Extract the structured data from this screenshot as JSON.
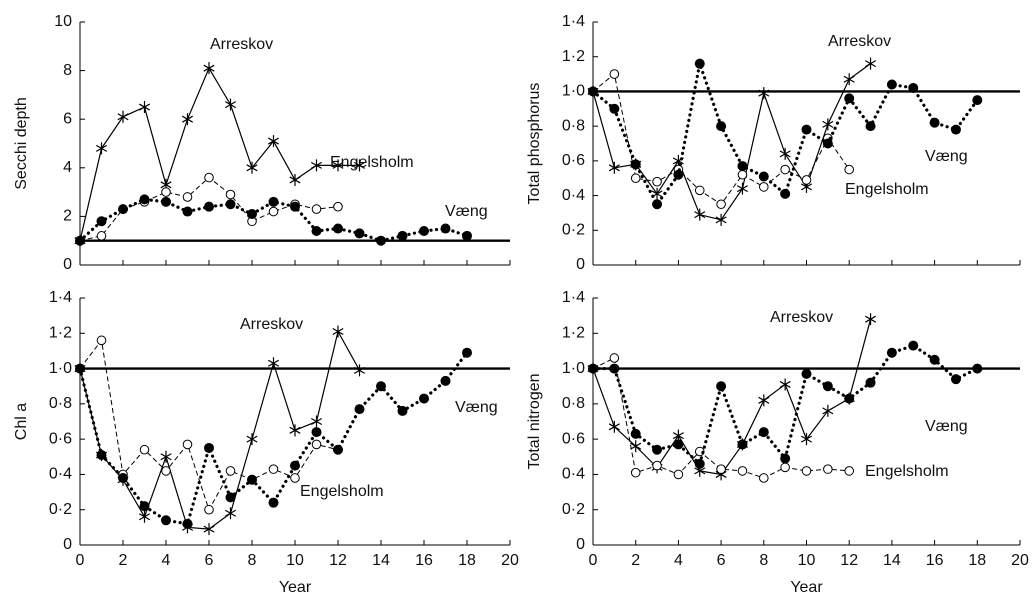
{
  "chart_data": [
    {
      "type": "line",
      "ylabel": "Secchi depth",
      "show_xtick_labels": false,
      "x": [
        0,
        1,
        2,
        3,
        4,
        5,
        6,
        7,
        8,
        9,
        10,
        11,
        12,
        13,
        14,
        15,
        16,
        17,
        18
      ],
      "xlim": [
        0,
        20
      ],
      "xticks": [
        0,
        2,
        4,
        6,
        8,
        10,
        12,
        14,
        16,
        18,
        20
      ],
      "ylim": [
        0,
        10
      ],
      "yticks": [
        0,
        2,
        4,
        6,
        8,
        10
      ],
      "hline": 1,
      "series": [
        {
          "name": "Arreskov",
          "color": "#000000",
          "marker": "asterisk",
          "line_style": "solid",
          "values": [
            1,
            4.8,
            6.1,
            6.5,
            3.3,
            6,
            8.1,
            6.6,
            4,
            5.1,
            3.5,
            4.1,
            4.1,
            4.1,
            null,
            null,
            null,
            null,
            null
          ]
        },
        {
          "name": "Engelsholm",
          "color": "#000000",
          "marker": "open-circle",
          "line_style": "dashed",
          "values": [
            1,
            1.2,
            2.3,
            2.6,
            3,
            2.8,
            3.6,
            2.9,
            1.8,
            2.2,
            2.5,
            2.3,
            2.4,
            null,
            null,
            null,
            null,
            null,
            null
          ]
        },
        {
          "name": "Væng",
          "color": "#000000",
          "marker": "filled-circle",
          "line_style": "dotted",
          "values": [
            1,
            1.8,
            2.3,
            2.7,
            2.6,
            2.2,
            2.4,
            2.5,
            2.1,
            2.6,
            2.4,
            1.4,
            1.5,
            1.3,
            1.0,
            1.2,
            1.4,
            1.5,
            1.2
          ]
        }
      ]
    },
    {
      "type": "line",
      "ylabel": "Total phosphorus",
      "show_xtick_labels": false,
      "x": [
        0,
        1,
        2,
        3,
        4,
        5,
        6,
        7,
        8,
        9,
        10,
        11,
        12,
        13,
        14,
        15,
        16,
        17,
        18
      ],
      "xlim": [
        0,
        20
      ],
      "xticks": [
        0,
        2,
        4,
        6,
        8,
        10,
        12,
        14,
        16,
        18,
        20
      ],
      "ylim": [
        0,
        1.4
      ],
      "yticks": [
        0,
        {
          "value": 0.2,
          "label": "0·2"
        },
        {
          "value": 0.4,
          "label": "0·4"
        },
        {
          "value": 0.6,
          "label": "0·6"
        },
        {
          "value": 0.8,
          "label": "0·8"
        },
        {
          "value": 1.0,
          "label": "1·0"
        },
        {
          "value": 1.2,
          "label": "1·2"
        },
        {
          "value": 1.4,
          "label": "1·4"
        }
      ],
      "hline": 1,
      "series": [
        {
          "name": "Arreskov",
          "color": "#000000",
          "marker": "asterisk",
          "line_style": "solid",
          "values": [
            1,
            0.56,
            0.58,
            0.41,
            0.6,
            0.29,
            0.26,
            0.44,
            0.99,
            0.64,
            0.45,
            0.81,
            1.07,
            1.16,
            null,
            null,
            null,
            null,
            null
          ]
        },
        {
          "name": "Engelsholm",
          "color": "#000000",
          "marker": "open-circle",
          "line_style": "dashed",
          "values": [
            1,
            1.1,
            0.5,
            0.48,
            0.55,
            0.43,
            0.35,
            0.52,
            0.45,
            0.55,
            0.49,
            0.73,
            0.55,
            null,
            null,
            null,
            null,
            null,
            null
          ]
        },
        {
          "name": "Væng",
          "color": "#000000",
          "marker": "filled-circle",
          "line_style": "dotted",
          "values": [
            1,
            0.9,
            0.58,
            0.35,
            0.52,
            1.16,
            0.8,
            0.57,
            0.51,
            0.41,
            0.78,
            0.7,
            0.96,
            0.8,
            1.04,
            1.02,
            0.82,
            0.78,
            0.95
          ]
        }
      ]
    },
    {
      "type": "line",
      "ylabel": "Chl a",
      "xlabel": "Year",
      "show_xtick_labels": true,
      "x": [
        0,
        1,
        2,
        3,
        4,
        5,
        6,
        7,
        8,
        9,
        10,
        11,
        12,
        13,
        14,
        15,
        16,
        17,
        18
      ],
      "xlim": [
        0,
        20
      ],
      "xticks": [
        0,
        2,
        4,
        6,
        8,
        10,
        12,
        14,
        16,
        18,
        20
      ],
      "ylim": [
        0,
        1.4
      ],
      "yticks": [
        0,
        {
          "value": 0.2,
          "label": "0·2"
        },
        {
          "value": 0.4,
          "label": "0·4"
        },
        {
          "value": 0.6,
          "label": "0·6"
        },
        {
          "value": 0.8,
          "label": "0·8"
        },
        {
          "value": 1.0,
          "label": "1·0"
        },
        {
          "value": 1.2,
          "label": "1·2"
        },
        {
          "value": 1.4,
          "label": "1·4"
        }
      ],
      "hline": 1,
      "series": [
        {
          "name": "Arreskov",
          "color": "#000000",
          "marker": "asterisk",
          "line_style": "solid",
          "values": [
            1,
            0.51,
            0.37,
            0.16,
            0.5,
            0.1,
            0.09,
            0.18,
            0.6,
            1.03,
            0.65,
            0.7,
            1.21,
            0.99,
            null,
            null,
            null,
            null,
            null
          ]
        },
        {
          "name": "Engelsholm",
          "color": "#000000",
          "marker": "open-circle",
          "line_style": "dashed",
          "values": [
            1,
            1.16,
            0.4,
            0.54,
            0.42,
            0.57,
            0.2,
            0.42,
            0.37,
            0.43,
            0.38,
            0.57,
            0.54,
            null,
            null,
            null,
            null,
            null,
            null
          ]
        },
        {
          "name": "Væng",
          "color": "#000000",
          "marker": "filled-circle",
          "line_style": "dotted",
          "values": [
            1,
            0.51,
            0.38,
            0.22,
            0.14,
            0.12,
            0.55,
            0.27,
            0.37,
            0.24,
            0.45,
            0.64,
            0.54,
            0.77,
            0.9,
            0.76,
            0.83,
            0.93,
            1.09
          ]
        }
      ]
    },
    {
      "type": "line",
      "ylabel": "Total nitrogen",
      "xlabel": "Year",
      "show_xtick_labels": true,
      "x": [
        0,
        1,
        2,
        3,
        4,
        5,
        6,
        7,
        8,
        9,
        10,
        11,
        12,
        13,
        14,
        15,
        16,
        17,
        18
      ],
      "xlim": [
        0,
        20
      ],
      "xticks": [
        0,
        2,
        4,
        6,
        8,
        10,
        12,
        14,
        16,
        18,
        20
      ],
      "ylim": [
        0,
        1.4
      ],
      "yticks": [
        0,
        {
          "value": 0.2,
          "label": "0·2"
        },
        {
          "value": 0.4,
          "label": "0·4"
        },
        {
          "value": 0.6,
          "label": "0·6"
        },
        {
          "value": 0.8,
          "label": "0·8"
        },
        {
          "value": 1.0,
          "label": "1·0"
        },
        {
          "value": 1.2,
          "label": "1·2"
        },
        {
          "value": 1.4,
          "label": "1·4"
        }
      ],
      "hline": 1,
      "series": [
        {
          "name": "Arreskov",
          "color": "#000000",
          "marker": "asterisk",
          "line_style": "solid",
          "values": [
            1,
            0.67,
            0.56,
            0.44,
            0.62,
            0.42,
            0.4,
            0.57,
            0.82,
            0.91,
            0.6,
            0.76,
            0.83,
            1.28,
            null,
            null,
            null,
            null,
            null
          ]
        },
        {
          "name": "Engelsholm",
          "color": "#000000",
          "marker": "open-circle",
          "line_style": "dashed",
          "values": [
            1,
            1.06,
            0.41,
            0.45,
            0.4,
            0.53,
            0.43,
            0.42,
            0.38,
            0.44,
            0.42,
            0.43,
            0.42,
            null,
            null,
            null,
            null,
            null,
            null
          ]
        },
        {
          "name": "Væng",
          "color": "#000000",
          "marker": "filled-circle",
          "line_style": "dotted",
          "values": [
            1,
            1.0,
            0.63,
            0.54,
            0.57,
            0.46,
            0.9,
            0.57,
            0.64,
            0.49,
            0.97,
            0.9,
            0.83,
            0.92,
            1.09,
            1.13,
            1.05,
            0.94,
            1.0
          ]
        }
      ]
    }
  ]
}
